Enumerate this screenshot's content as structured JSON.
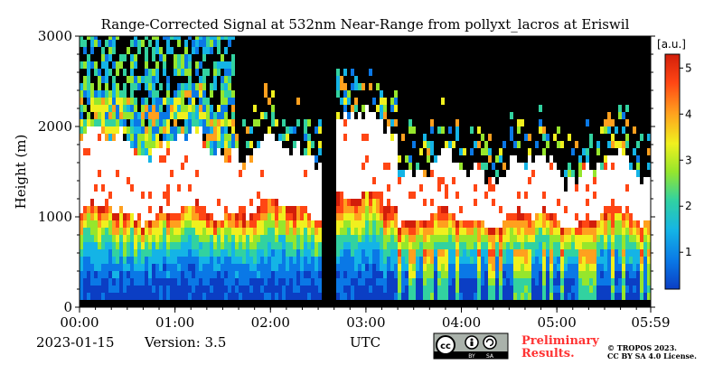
{
  "chart_data": {
    "type": "heatmap",
    "title": "Range-Corrected Signal at 532nm Near-Range from pollyxt_lacros at Eriswil",
    "ylabel": "Height (m)",
    "xlabel": "UTC",
    "x_ticks": [
      "00:00",
      "01:00",
      "02:00",
      "03:00",
      "04:00",
      "05:00",
      "05:59"
    ],
    "x_tick_hours": [
      0,
      1,
      2,
      3,
      4,
      5,
      5.983
    ],
    "xlim_hours": [
      0,
      5.983
    ],
    "y_ticks": [
      0,
      1000,
      2000,
      3000
    ],
    "ylim": [
      0,
      3000
    ],
    "colorbar": {
      "unit": "[a.u.]",
      "ticks": [
        1,
        2,
        3,
        4,
        5
      ],
      "range": [
        0.2,
        5.3
      ],
      "colors": [
        "#0b3ec4",
        "#0a78e6",
        "#14b4e6",
        "#32d2a0",
        "#96e62c",
        "#f0f01e",
        "#ffa01e",
        "#ff4614",
        "#d21e0a"
      ]
    },
    "data_gaps_hours": [
      [
        2.5,
        2.67
      ]
    ],
    "layers": [
      {
        "start_h": 0.0,
        "end_h": 1.5,
        "base_m": 1000,
        "top_m": 1800,
        "value": "saturated"
      },
      {
        "start_h": 1.5,
        "end_h": 2.5,
        "base_m": 1050,
        "top_m": 1700,
        "value": "saturated"
      },
      {
        "start_h": 2.67,
        "end_h": 3.3,
        "base_m": 1150,
        "top_m": 2000,
        "value": "saturated"
      },
      {
        "start_h": 3.3,
        "end_h": 5.983,
        "base_m": 950,
        "top_m": 1500,
        "value": "saturated"
      }
    ]
  },
  "footer": {
    "date": "2023-01-15",
    "version": "Version: 3.5",
    "preliminary_line1": "Preliminary",
    "preliminary_line2": "Results.",
    "copyright_line1": "© TROPOS 2023.",
    "copyright_line2": "CC BY SA 4.0 License.",
    "cc_badge_text": [
      "cc",
      "BY",
      "SA"
    ]
  }
}
